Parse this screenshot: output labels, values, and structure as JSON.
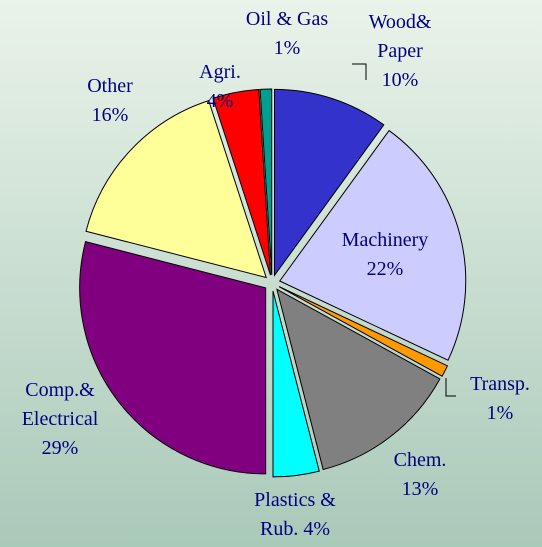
{
  "chart_data": {
    "type": "pie",
    "categories": [
      "Wood& Paper",
      "Machinery",
      "Transp.",
      "Chem.",
      "Plastics & Rub.",
      "Comp.& Electrical",
      "Other",
      "Agri.",
      "Oil & Gas"
    ],
    "values": [
      10,
      22,
      1,
      13,
      4,
      29,
      16,
      4,
      1
    ],
    "value_labels": [
      "10%",
      "22%",
      "1%",
      "13%",
      "4%",
      "29%",
      "16%",
      "4%",
      "1%"
    ],
    "colors": [
      "#3333cc",
      "#ccccff",
      "#ff9900",
      "#808080",
      "#00ffff",
      "#800080",
      "#ffff99",
      "#ff0000",
      "#00a090"
    ]
  }
}
